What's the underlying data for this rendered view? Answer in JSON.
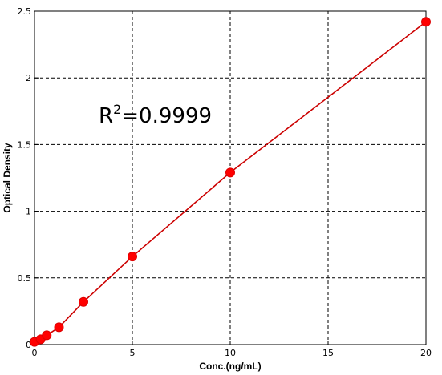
{
  "chart_data": {
    "type": "scatter",
    "xlabel": "Conc.(ng/mL)",
    "ylabel": "Optical Density",
    "xlim": [
      0,
      20
    ],
    "ylim": [
      0,
      2.5
    ],
    "xticks": [
      0,
      5,
      10,
      15,
      20
    ],
    "xtick_labels": [
      "0",
      "5",
      "10",
      "15",
      "20"
    ],
    "yticks": [
      0,
      0.5,
      1,
      1.5,
      2,
      2.5
    ],
    "ytick_labels": [
      "0",
      "0.5",
      "1",
      "1.5",
      "2",
      "2.5"
    ],
    "grid": true,
    "annotation": {
      "prefix": "R",
      "sup": "2",
      "suffix": "=0.9999"
    },
    "series": [
      {
        "x": [
          0,
          0.3125,
          0.625,
          1.25,
          2.5,
          5,
          10,
          20
        ],
        "y": [
          0.02,
          0.04,
          0.07,
          0.13,
          0.32,
          0.66,
          1.29,
          2.42
        ],
        "color": "#ff0000",
        "line_color": "#cc0000",
        "marker": "circle"
      }
    ]
  }
}
